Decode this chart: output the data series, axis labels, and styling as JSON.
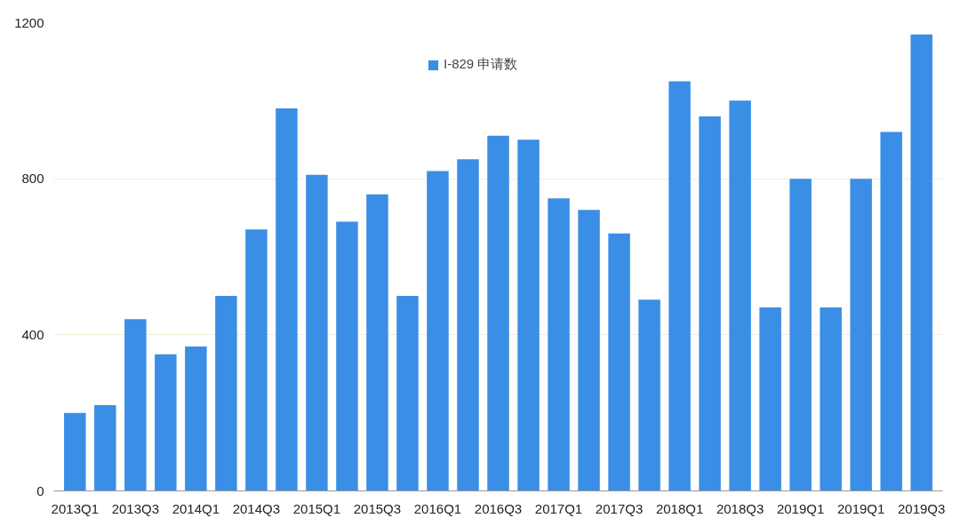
{
  "chart_data": {
    "type": "bar",
    "categories": [
      "2013Q1",
      null,
      "2013Q3",
      null,
      "2014Q1",
      null,
      "2014Q3",
      null,
      "2015Q1",
      null,
      "2015Q3",
      null,
      "2016Q1",
      null,
      "2016Q3",
      null,
      "2017Q1",
      null,
      "2017Q3",
      null,
      "2018Q1",
      null,
      "2018Q3",
      null,
      "2019Q1",
      null,
      "2019Q1",
      null,
      "2019Q3"
    ],
    "series": [
      {
        "name": "I-829 申请数",
        "color": "#3a8ee6",
        "values": [
          200,
          220,
          440,
          350,
          370,
          500,
          670,
          980,
          810,
          690,
          760,
          500,
          820,
          850,
          910,
          900,
          750,
          720,
          660,
          490,
          1050,
          960,
          1000,
          470,
          800,
          470,
          800,
          920,
          1170
        ]
      }
    ],
    "ylim": [
      0,
      1200
    ],
    "yticks": [
      0,
      400,
      800,
      1200
    ],
    "grid": "y",
    "legend": "top"
  }
}
